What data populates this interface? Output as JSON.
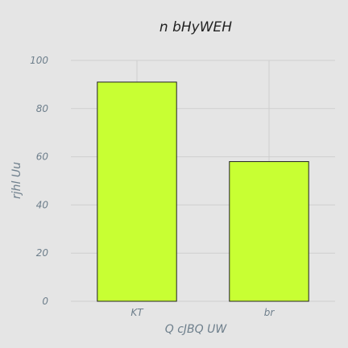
{
  "chart_data": {
    "type": "bar",
    "title": "n bHyWEH",
    "xlabel": "Q cJBQ UW",
    "ylabel": "rjhl Uu",
    "categories": [
      "KT",
      "br"
    ],
    "values": [
      91,
      58
    ],
    "ylim": [
      0,
      100
    ],
    "yticks": [
      0,
      20,
      40,
      60,
      80,
      100
    ],
    "grid": true,
    "bar_color": "#c8ff33",
    "background_color": "#e5e5e5"
  }
}
